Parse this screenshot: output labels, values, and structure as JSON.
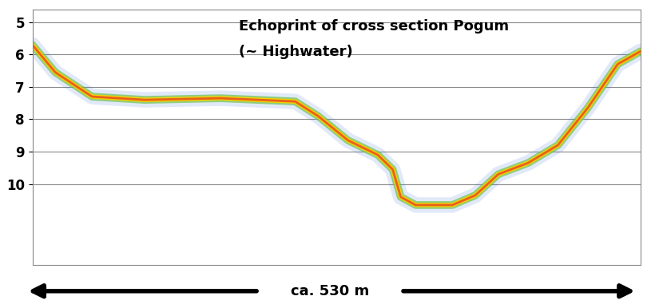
{
  "chart_data": {
    "type": "line",
    "title": "Echoprint of cross section Pogum",
    "subtitle": "(~ Highwater)",
    "x_label": "ca. 530 m",
    "x": [
      0,
      20,
      52,
      98,
      164,
      229,
      249,
      275,
      301,
      314,
      321,
      334,
      366,
      386,
      406,
      432,
      458,
      484,
      510,
      530
    ],
    "values": [
      5.7,
      6.55,
      7.3,
      7.4,
      7.35,
      7.45,
      7.9,
      8.65,
      9.1,
      9.55,
      10.4,
      10.65,
      10.65,
      10.35,
      9.7,
      9.35,
      8.8,
      7.65,
      6.3,
      5.9
    ],
    "color": "#e8601c",
    "xlim": [
      0,
      530
    ],
    "ylim": [
      12.5,
      4.6
    ],
    "yticks": [
      5,
      6,
      7,
      8,
      9,
      10
    ],
    "grid": true,
    "tick_labels": "y"
  }
}
